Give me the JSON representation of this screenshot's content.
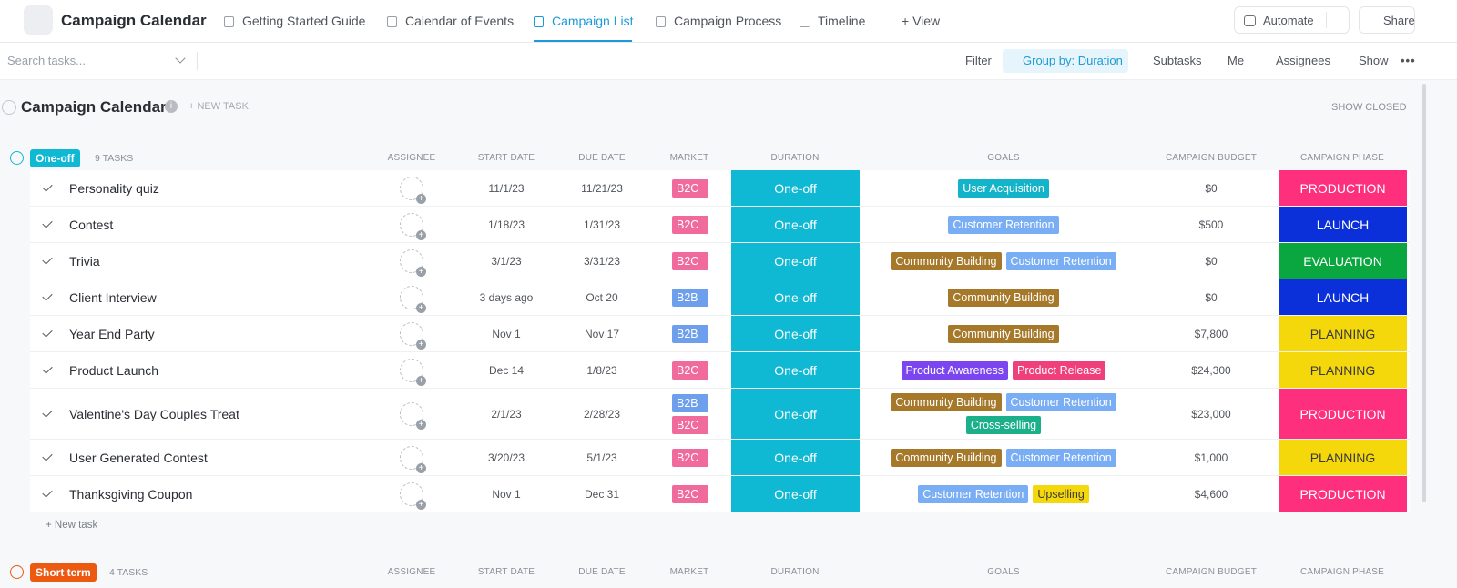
{
  "header": {
    "title": "Campaign Calendar",
    "tabs": [
      "Getting Started Guide",
      "Calendar of Events",
      "Campaign List",
      "Campaign Process",
      "Timeline",
      "+ View"
    ],
    "automate": "Automate",
    "share": "Share"
  },
  "toolbar": {
    "search_placeholder": "Search tasks...",
    "filter": "Filter",
    "group_by": "Group by: Duration",
    "subtasks": "Subtasks",
    "me": "Me",
    "assignees": "Assignees",
    "show": "Show"
  },
  "list": {
    "title": "Campaign Calendar",
    "new_task": "+ NEW TASK",
    "show_closed": "SHOW CLOSED"
  },
  "groups": [
    {
      "name": "One-off",
      "color": "#0fb8d3",
      "count": "9 TASKS",
      "columns": [
        "ASSIGNEE",
        "START DATE",
        "DUE DATE",
        "MARKET",
        "DURATION",
        "GOALS",
        "CAMPAIGN BUDGET",
        "CAMPAIGN PHASE"
      ],
      "tasks": [
        {
          "name": "Personality quiz",
          "start": "11/1/23",
          "due": "11/21/23",
          "market": [
            {
              "label": "B2C",
              "color": "#f06a9b"
            }
          ],
          "duration": "One-off",
          "goals": [
            {
              "label": "User Acquisition",
              "color": "#13b3c9"
            }
          ],
          "budget": "$0",
          "phase": {
            "label": "PRODUCTION",
            "color": "#fe2f7d"
          }
        },
        {
          "name": "Contest",
          "start": "1/18/23",
          "due": "1/31/23",
          "market": [
            {
              "label": "B2C",
              "color": "#f06a9b"
            }
          ],
          "duration": "One-off",
          "goals": [
            {
              "label": "Customer Retention",
              "color": "#7aaef4"
            }
          ],
          "budget": "$500",
          "phase": {
            "label": "LAUNCH",
            "color": "#0b2fd8"
          }
        },
        {
          "name": "Trivia",
          "start": "3/1/23",
          "due": "3/31/23",
          "market": [
            {
              "label": "B2C",
              "color": "#f06a9b"
            }
          ],
          "duration": "One-off",
          "goals": [
            {
              "label": "Community Building",
              "color": "#a6782a"
            },
            {
              "label": "Customer Retention",
              "color": "#7aaef4"
            }
          ],
          "budget": "$0",
          "phase": {
            "label": "EVALUATION",
            "color": "#0aa63f"
          }
        },
        {
          "name": "Client Interview",
          "start": "3 days ago",
          "due": "Oct 20",
          "market": [
            {
              "label": "B2B",
              "color": "#6d9fec"
            }
          ],
          "duration": "One-off",
          "goals": [
            {
              "label": "Community Building",
              "color": "#a6782a"
            }
          ],
          "budget": "$0",
          "phase": {
            "label": "LAUNCH",
            "color": "#0b2fd8"
          }
        },
        {
          "name": "Year End Party",
          "start": "Nov 1",
          "due": "Nov 17",
          "market": [
            {
              "label": "B2B",
              "color": "#6d9fec"
            }
          ],
          "duration": "One-off",
          "goals": [
            {
              "label": "Community Building",
              "color": "#a6782a"
            }
          ],
          "budget": "$7,800",
          "phase": {
            "label": "PLANNING",
            "color": "#f5d80c"
          }
        },
        {
          "name": "Product Launch",
          "start": "Dec 14",
          "due": "1/8/23",
          "market": [
            {
              "label": "B2C",
              "color": "#f06a9b"
            }
          ],
          "duration": "One-off",
          "goals": [
            {
              "label": "Product Awareness",
              "color": "#7b45f0"
            },
            {
              "label": "Product Release",
              "color": "#f0407c"
            }
          ],
          "budget": "$24,300",
          "phase": {
            "label": "PLANNING",
            "color": "#f5d80c"
          }
        },
        {
          "name": "Valentine's Day Couples Treat",
          "start": "2/1/23",
          "due": "2/28/23",
          "market": [
            {
              "label": "B2B",
              "color": "#6d9fec"
            },
            {
              "label": "B2C",
              "color": "#f06a9b"
            }
          ],
          "duration": "One-off",
          "goals": [
            {
              "label": "Community Building",
              "color": "#a6782a"
            },
            {
              "label": "Customer Retention",
              "color": "#7aaef4"
            },
            {
              "label": "Cross-selling",
              "color": "#1bb08a"
            }
          ],
          "budget": "$23,000",
          "phase": {
            "label": "PRODUCTION",
            "color": "#fe2f7d"
          }
        },
        {
          "name": "User Generated Contest",
          "start": "3/20/23",
          "due": "5/1/23",
          "market": [
            {
              "label": "B2C",
              "color": "#f06a9b"
            }
          ],
          "duration": "One-off",
          "goals": [
            {
              "label": "Community Building",
              "color": "#a6782a"
            },
            {
              "label": "Customer Retention",
              "color": "#7aaef4"
            }
          ],
          "budget": "$1,000",
          "phase": {
            "label": "PLANNING",
            "color": "#f5d80c"
          }
        },
        {
          "name": "Thanksgiving Coupon",
          "start": "Nov 1",
          "due": "Dec 31",
          "market": [
            {
              "label": "B2C",
              "color": "#f06a9b"
            }
          ],
          "duration": "One-off",
          "goals": [
            {
              "label": "Customer Retention",
              "color": "#7aaef4"
            },
            {
              "label": "Upselling",
              "color": "#f5d80c"
            }
          ],
          "budget": "$4,600",
          "phase": {
            "label": "PRODUCTION",
            "color": "#fe2f7d"
          }
        }
      ],
      "new_task": "+ New task"
    },
    {
      "name": "Short term",
      "color": "#ec5a12",
      "count": "4 TASKS",
      "columns": [
        "ASSIGNEE",
        "START DATE",
        "DUE DATE",
        "MARKET",
        "DURATION",
        "GOALS",
        "CAMPAIGN BUDGET",
        "CAMPAIGN PHASE"
      ],
      "tasks": []
    }
  ]
}
